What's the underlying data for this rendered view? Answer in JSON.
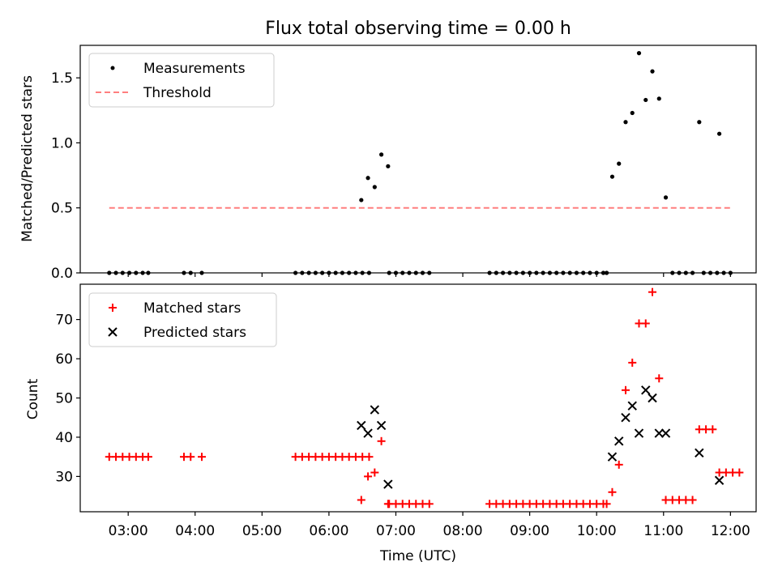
{
  "title": "Flux total observing time = 0.00 h",
  "colors": {
    "measurement": "#000000",
    "threshold": "#ff7f7f",
    "matched": "#ff0000",
    "predicted": "#000000"
  },
  "chart_data": [
    {
      "type": "scatter",
      "panel": "top",
      "title": "Flux total observing time = 0.00 h",
      "xlabel": "",
      "ylabel": "Matched/Predicted stars",
      "xlim": [
        "02:17",
        "12:23"
      ],
      "ylim": [
        0,
        1.75
      ],
      "yticks": [
        0.0,
        0.5,
        1.0,
        1.5
      ],
      "ytick_labels": [
        "0.0",
        "0.5",
        "1.0",
        "1.5"
      ],
      "legend": {
        "position": "top-left",
        "entries": [
          "Measurements",
          "Threshold"
        ]
      },
      "grid": false,
      "series": [
        {
          "name": "Measurements",
          "marker": "dot",
          "points": [
            [
              "02:43",
              0
            ],
            [
              "02:49",
              0
            ],
            [
              "02:55",
              0
            ],
            [
              "03:01",
              0
            ],
            [
              "03:07",
              0
            ],
            [
              "03:13",
              0
            ],
            [
              "03:18",
              0
            ],
            [
              "03:50",
              0
            ],
            [
              "03:56",
              0
            ],
            [
              "04:06",
              0
            ],
            [
              "05:30",
              0
            ],
            [
              "05:36",
              0
            ],
            [
              "05:42",
              0
            ],
            [
              "05:48",
              0
            ],
            [
              "05:54",
              0
            ],
            [
              "06:00",
              0
            ],
            [
              "06:06",
              0
            ],
            [
              "06:12",
              0
            ],
            [
              "06:18",
              0
            ],
            [
              "06:24",
              0
            ],
            [
              "06:30",
              0
            ],
            [
              "06:36",
              0
            ],
            [
              "06:29",
              0.56
            ],
            [
              "06:35",
              0.73
            ],
            [
              "06:41",
              0.66
            ],
            [
              "06:47",
              0.91
            ],
            [
              "06:53",
              0.82
            ],
            [
              "06:54",
              0
            ],
            [
              "07:00",
              0
            ],
            [
              "07:06",
              0
            ],
            [
              "07:12",
              0
            ],
            [
              "07:18",
              0
            ],
            [
              "07:24",
              0
            ],
            [
              "07:30",
              0
            ],
            [
              "08:24",
              0
            ],
            [
              "08:30",
              0
            ],
            [
              "08:36",
              0
            ],
            [
              "08:42",
              0
            ],
            [
              "08:48",
              0
            ],
            [
              "08:54",
              0
            ],
            [
              "09:00",
              0
            ],
            [
              "09:06",
              0
            ],
            [
              "09:12",
              0
            ],
            [
              "09:18",
              0
            ],
            [
              "09:24",
              0
            ],
            [
              "09:30",
              0
            ],
            [
              "09:36",
              0
            ],
            [
              "09:42",
              0
            ],
            [
              "09:48",
              0
            ],
            [
              "09:54",
              0
            ],
            [
              "10:00",
              0
            ],
            [
              "10:06",
              0
            ],
            [
              "10:09",
              0
            ],
            [
              "10:14",
              0.74
            ],
            [
              "10:20",
              0.84
            ],
            [
              "10:26",
              1.16
            ],
            [
              "10:32",
              1.23
            ],
            [
              "10:38",
              1.69
            ],
            [
              "10:44",
              1.33
            ],
            [
              "10:50",
              1.55
            ],
            [
              "10:56",
              1.34
            ],
            [
              "11:02",
              0.58
            ],
            [
              "11:08",
              0
            ],
            [
              "11:14",
              0
            ],
            [
              "11:20",
              0
            ],
            [
              "11:26",
              0
            ],
            [
              "11:36",
              0
            ],
            [
              "11:42",
              0
            ],
            [
              "11:48",
              0
            ],
            [
              "11:54",
              0
            ],
            [
              "12:00",
              0
            ],
            [
              "11:32",
              1.16
            ],
            [
              "11:50",
              1.07
            ]
          ]
        },
        {
          "name": "Threshold",
          "style": "dashed",
          "points": [
            [
              "02:43",
              0.5
            ],
            [
              "12:00",
              0.5
            ]
          ]
        }
      ]
    },
    {
      "type": "scatter",
      "panel": "bottom",
      "title": "",
      "xlabel": "Time (UTC)",
      "ylabel": "Count",
      "xlim": [
        "02:17",
        "12:23"
      ],
      "ylim": [
        21,
        79
      ],
      "yticks": [
        30,
        40,
        50,
        60,
        70
      ],
      "ytick_labels": [
        "30",
        "40",
        "50",
        "60",
        "70"
      ],
      "xticks": [
        "03:00",
        "04:00",
        "05:00",
        "06:00",
        "07:00",
        "08:00",
        "09:00",
        "10:00",
        "11:00",
        "12:00"
      ],
      "xtick_labels": [
        "03:00",
        "04:00",
        "05:00",
        "06:00",
        "07:00",
        "08:00",
        "09:00",
        "10:00",
        "11:00",
        "12:00"
      ],
      "legend": {
        "position": "top-left",
        "entries": [
          "Matched stars",
          "Predicted stars"
        ]
      },
      "grid": false,
      "series": [
        {
          "name": "Matched stars",
          "marker": "plus",
          "points": [
            [
              "02:43",
              35
            ],
            [
              "02:49",
              35
            ],
            [
              "02:55",
              35
            ],
            [
              "03:01",
              35
            ],
            [
              "03:07",
              35
            ],
            [
              "03:13",
              35
            ],
            [
              "03:18",
              35
            ],
            [
              "03:50",
              35
            ],
            [
              "03:56",
              35
            ],
            [
              "04:06",
              35
            ],
            [
              "05:30",
              35
            ],
            [
              "05:36",
              35
            ],
            [
              "05:42",
              35
            ],
            [
              "05:48",
              35
            ],
            [
              "05:54",
              35
            ],
            [
              "06:00",
              35
            ],
            [
              "06:06",
              35
            ],
            [
              "06:12",
              35
            ],
            [
              "06:18",
              35
            ],
            [
              "06:24",
              35
            ],
            [
              "06:30",
              35
            ],
            [
              "06:36",
              35
            ],
            [
              "06:29",
              24
            ],
            [
              "06:35",
              30
            ],
            [
              "06:41",
              31
            ],
            [
              "06:47",
              39
            ],
            [
              "06:53",
              23
            ],
            [
              "06:54",
              23
            ],
            [
              "07:00",
              23
            ],
            [
              "07:06",
              23
            ],
            [
              "07:12",
              23
            ],
            [
              "07:18",
              23
            ],
            [
              "07:24",
              23
            ],
            [
              "07:30",
              23
            ],
            [
              "08:24",
              23
            ],
            [
              "08:30",
              23
            ],
            [
              "08:36",
              23
            ],
            [
              "08:42",
              23
            ],
            [
              "08:48",
              23
            ],
            [
              "08:54",
              23
            ],
            [
              "09:00",
              23
            ],
            [
              "09:06",
              23
            ],
            [
              "09:12",
              23
            ],
            [
              "09:18",
              23
            ],
            [
              "09:24",
              23
            ],
            [
              "09:30",
              23
            ],
            [
              "09:36",
              23
            ],
            [
              "09:42",
              23
            ],
            [
              "09:48",
              23
            ],
            [
              "09:54",
              23
            ],
            [
              "10:00",
              23
            ],
            [
              "10:06",
              23
            ],
            [
              "10:09",
              23
            ],
            [
              "10:14",
              26
            ],
            [
              "10:20",
              33
            ],
            [
              "10:26",
              52
            ],
            [
              "10:32",
              59
            ],
            [
              "10:38",
              69
            ],
            [
              "10:44",
              69
            ],
            [
              "10:50",
              77
            ],
            [
              "10:56",
              55
            ],
            [
              "11:02",
              24
            ],
            [
              "11:08",
              24
            ],
            [
              "11:14",
              24
            ],
            [
              "11:20",
              24
            ],
            [
              "11:26",
              24
            ],
            [
              "11:32",
              42
            ],
            [
              "11:38",
              42
            ],
            [
              "11:44",
              42
            ],
            [
              "11:50",
              31
            ],
            [
              "11:56",
              31
            ],
            [
              "12:02",
              31
            ],
            [
              "12:08",
              31
            ]
          ]
        },
        {
          "name": "Predicted stars",
          "marker": "x",
          "points": [
            [
              "06:29",
              43
            ],
            [
              "06:35",
              41
            ],
            [
              "06:41",
              47
            ],
            [
              "06:47",
              43
            ],
            [
              "06:53",
              28
            ],
            [
              "10:14",
              35
            ],
            [
              "10:20",
              39
            ],
            [
              "10:26",
              45
            ],
            [
              "10:32",
              48
            ],
            [
              "10:38",
              41
            ],
            [
              "10:44",
              52
            ],
            [
              "10:50",
              50
            ],
            [
              "10:56",
              41
            ],
            [
              "11:02",
              41
            ],
            [
              "11:32",
              36
            ],
            [
              "11:50",
              29
            ]
          ]
        }
      ]
    }
  ]
}
